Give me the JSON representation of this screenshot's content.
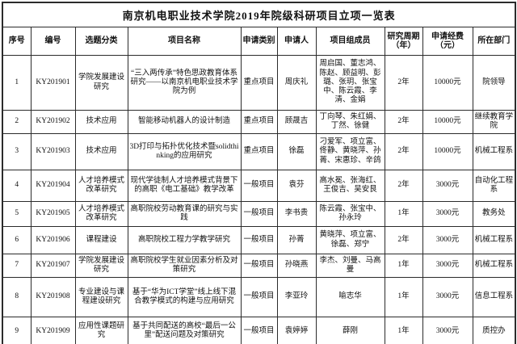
{
  "title": "南京机电职业技术学院2019年院级科研项目立项一览表",
  "table": {
    "headers": [
      "序号",
      "编号",
      "选题分类",
      "项目名称",
      "申请类别",
      "申请人",
      "项目组成员",
      "研究周期（年）",
      "申请经费（元）",
      "所在部门"
    ],
    "fields": [
      "seq",
      "code",
      "category",
      "name",
      "type",
      "applicant",
      "members",
      "period",
      "funding",
      "department"
    ],
    "rows": [
      {
        "seq": "1",
        "code": "KY201901",
        "category": "学院发展建设研究",
        "name": "“三入两传承”特色思政教育体系研究——以南京机电职业技术学院为例",
        "type": "重点项目",
        "applicant": "周庆礼",
        "members": "周启国、董志鸿、陈赵、顾益明、彭璐、张玥、张宝中、陈云霞、李清、金娟",
        "period": "2年",
        "funding": "10000元",
        "department": "院领导"
      },
      {
        "seq": "2",
        "code": "KY201902",
        "category": "技术应用",
        "name": "智能移动机器人的设计制造",
        "type": "重点项目",
        "applicant": "顾晟吉",
        "members": "丁向琴、朱红娟、丁然、徐健",
        "period": "2年",
        "funding": "10000元",
        "department": "继续教育学院"
      },
      {
        "seq": "3",
        "code": "KY201903",
        "category": "技术应用",
        "name": "3D打印与拓扑优化技术暨solidthinking的应用研究",
        "type": "重点项目",
        "applicant": "徐磊",
        "members": "刁爱军、项立富、佟静、黄晓萍、孙菁、宋惠珍、辛鸽",
        "period": "2年",
        "funding": "10000元",
        "department": "机械工程系"
      },
      {
        "seq": "4",
        "code": "KY201904",
        "category": "人才培养模式改革研究",
        "name": "现代学徒制人才培养模式背景下的高职《电工基础》教学改革",
        "type": "一般项目",
        "applicant": "袁芬",
        "members": "高水冕、张海红、王俊吉、吴安艮",
        "period": "2年",
        "funding": "3000元",
        "department": "自动化工程系"
      },
      {
        "seq": "5",
        "code": "KY201905",
        "category": "人才培养模式改革研究",
        "name": "高职院校劳动教育课的研究与实践",
        "type": "一般项目",
        "applicant": "李书贵",
        "members": "陈云霞、张宝中、孙永玲",
        "period": "1年",
        "funding": "3000元",
        "department": "教务处"
      },
      {
        "seq": "6",
        "code": "KY201906",
        "category": "课程建设",
        "name": "高职院校工程力学教学研究",
        "type": "一般项目",
        "applicant": "孙菁",
        "members": "黄晓萍、项立富、徐磊、郑宁",
        "period": "2年",
        "funding": "3000元",
        "department": "机械工程系"
      },
      {
        "seq": "7",
        "code": "KY201907",
        "category": "学院发展建设研究",
        "name": "高职院校学生就业因素分析及对策研究",
        "type": "一般项目",
        "applicant": "孙晓燕",
        "members": "李杰、刘曼、马高曼",
        "period": "1年",
        "funding": "3000元",
        "department": "机械工程系"
      },
      {
        "seq": "8",
        "code": "KY201908",
        "category": "专业建设与课程建设研究",
        "name": "基于“华为ICT学堂”线上线下混合教学模式的构建与应用研究",
        "type": "一般项目",
        "applicant": "李亚玲",
        "members": "喻志华",
        "period": "1年",
        "funding": "3000元",
        "department": "信息工程系"
      },
      {
        "seq": "9",
        "code": "KY201909",
        "category": "应用性课题研究",
        "name": "基于共同配送的高校“最后一公里”配送问题及对策研究",
        "type": "一般项目",
        "applicant": "袁婷婷",
        "members": "薛刚",
        "period": "1年",
        "funding": "3000元",
        "department": "质控办"
      }
    ]
  }
}
